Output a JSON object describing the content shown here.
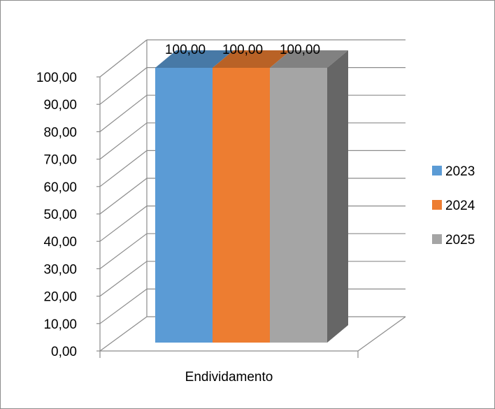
{
  "chart_data": {
    "type": "bar",
    "title": "",
    "xlabel": "",
    "ylabel": "",
    "categories": [
      "Endividamento"
    ],
    "series": [
      {
        "name": "2023",
        "values": [
          100.0
        ],
        "color": "#5b9bd5"
      },
      {
        "name": "2024",
        "values": [
          100.0
        ],
        "color": "#ed7d31"
      },
      {
        "name": "2025",
        "values": [
          100.0
        ],
        "color": "#a5a5a5"
      }
    ],
    "data_labels": [
      "100,00",
      "100,00",
      "100,00"
    ],
    "ylim": [
      0,
      100
    ],
    "y_ticks": [
      "0,00",
      "10,00",
      "20,00",
      "30,00",
      "40,00",
      "50,00",
      "60,00",
      "70,00",
      "80,00",
      "90,00",
      "100,00"
    ],
    "grid": true,
    "three_d": true,
    "legend_position": "right"
  }
}
